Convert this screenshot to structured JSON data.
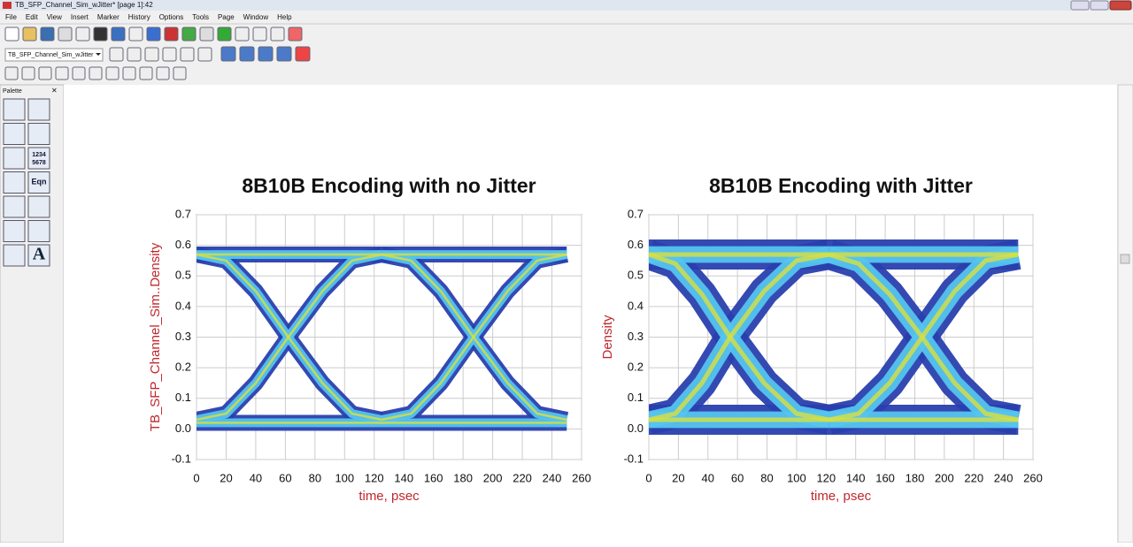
{
  "window": {
    "title": "TB_SFP_Channel_Sim_wJitter* [page 1]:42",
    "menu": [
      "File",
      "Edit",
      "View",
      "Insert",
      "Marker",
      "History",
      "Options",
      "Tools",
      "Page",
      "Window",
      "Help"
    ]
  },
  "toolbar": {
    "dropdown": "TB_SFP_Channel_Sim_wJitter"
  },
  "palette": {
    "title": "Palette",
    "items": [
      "1234",
      "5678",
      "Eqn",
      "A"
    ]
  },
  "chart_data": [
    {
      "type": "eye",
      "title": "8B10B Encoding with no Jitter",
      "xlabel": "time, psec",
      "ylabel": "TB_SFP_Channel_Sim..Density",
      "xlim": [
        0,
        260
      ],
      "ylim": [
        -0.1,
        0.7
      ],
      "xticks": [
        0,
        20,
        40,
        60,
        80,
        100,
        120,
        140,
        160,
        180,
        200,
        220,
        240,
        260
      ],
      "yticks": [
        -0.1,
        {
          "value": 0,
          "label": "0.0"
        },
        0.1,
        0.2,
        0.3,
        0.4,
        0.5,
        0.6,
        0.7
      ],
      "grid": true,
      "line_width": 18,
      "core_color": "#55c4ee",
      "peak_color": "#d8e040",
      "series": [
        {
          "color": "#2a3fae",
          "x": [
            0,
            250
          ],
          "values": [
            0.57,
            0.57
          ]
        },
        {
          "color": "#2a3fae",
          "x": [
            0,
            250
          ],
          "values": [
            0.02,
            0.02
          ]
        },
        {
          "color": "#2a3fae",
          "x": [
            0,
            20,
            40,
            62,
            85,
            105,
            125
          ],
          "values": [
            0.57,
            0.55,
            0.45,
            0.3,
            0.15,
            0.05,
            0.03
          ]
        },
        {
          "color": "#2a3fae",
          "x": [
            0,
            20,
            40,
            62,
            85,
            105,
            125
          ],
          "values": [
            0.03,
            0.05,
            0.15,
            0.3,
            0.45,
            0.55,
            0.57
          ]
        },
        {
          "color": "#2a3fae",
          "x": [
            125,
            145,
            165,
            187,
            210,
            230,
            250
          ],
          "values": [
            0.57,
            0.55,
            0.45,
            0.3,
            0.15,
            0.05,
            0.03
          ]
        },
        {
          "color": "#2a3fae",
          "x": [
            125,
            145,
            165,
            187,
            210,
            230,
            250
          ],
          "values": [
            0.03,
            0.05,
            0.15,
            0.3,
            0.45,
            0.55,
            0.57
          ]
        }
      ]
    },
    {
      "type": "eye",
      "title": "8B10B Encoding with Jitter",
      "xlabel": "time, psec",
      "ylabel": "Density",
      "xlim": [
        0,
        260
      ],
      "ylim": [
        -0.1,
        0.7
      ],
      "xticks": [
        0,
        20,
        40,
        60,
        80,
        100,
        120,
        140,
        160,
        180,
        200,
        220,
        240,
        260
      ],
      "yticks": [
        -0.1,
        {
          "value": 0,
          "label": "0.0"
        },
        0.1,
        0.2,
        0.3,
        0.4,
        0.5,
        0.6,
        0.7
      ],
      "grid": true,
      "line_width": 34,
      "core_color": "#55c4ee",
      "peak_color": "#d8e040",
      "series": [
        {
          "color": "#2a3fae",
          "x": [
            0,
            250
          ],
          "values": [
            0.57,
            0.57
          ]
        },
        {
          "color": "#2a3fae",
          "x": [
            0,
            250
          ],
          "values": [
            0.03,
            0.03
          ]
        },
        {
          "color": "#2a3fae",
          "x": [
            0,
            18,
            36,
            55,
            78,
            100,
            122
          ],
          "values": [
            0.57,
            0.54,
            0.44,
            0.3,
            0.15,
            0.05,
            0.03
          ]
        },
        {
          "color": "#2a3fae",
          "x": [
            0,
            18,
            36,
            55,
            78,
            100,
            122
          ],
          "values": [
            0.03,
            0.05,
            0.15,
            0.3,
            0.45,
            0.55,
            0.57
          ]
        },
        {
          "color": "#2a3fae",
          "x": [
            122,
            142,
            163,
            185,
            207,
            228,
            250
          ],
          "values": [
            0.57,
            0.54,
            0.44,
            0.3,
            0.15,
            0.05,
            0.03
          ]
        },
        {
          "color": "#2a3fae",
          "x": [
            122,
            142,
            163,
            185,
            207,
            228,
            250
          ],
          "values": [
            0.03,
            0.05,
            0.15,
            0.3,
            0.45,
            0.55,
            0.57
          ]
        }
      ]
    }
  ]
}
